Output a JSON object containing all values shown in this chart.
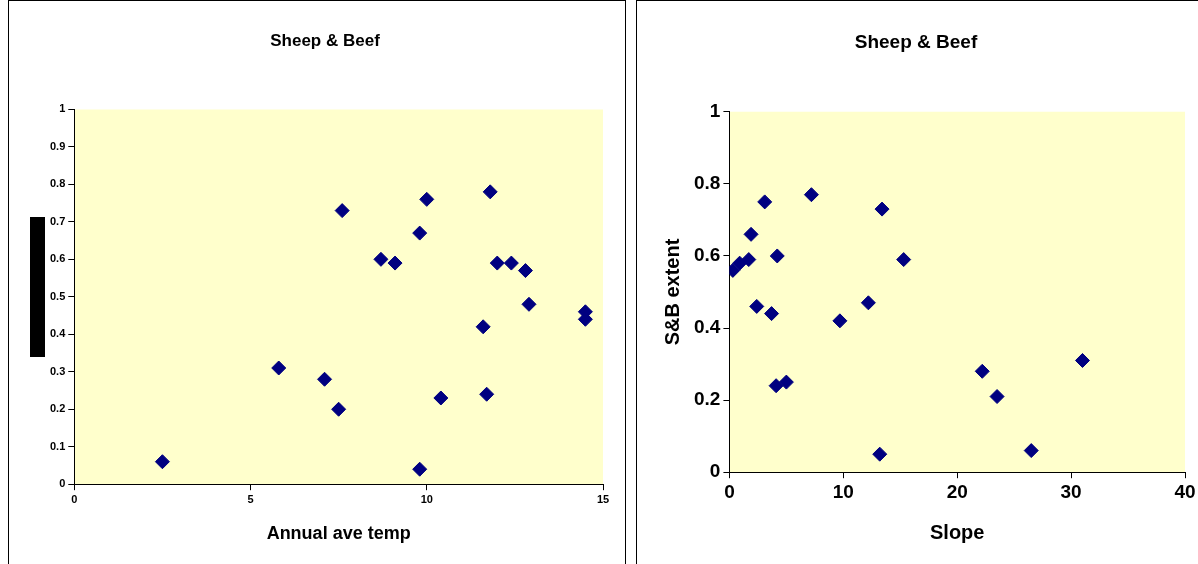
{
  "chart_data": [
    {
      "type": "scatter",
      "title": "Sheep & Beef",
      "xlabel": "Annual ave temp",
      "marker": "diamond",
      "xlim": [
        0,
        15
      ],
      "xticks": [
        0,
        5,
        10,
        15
      ],
      "ylim": [
        0,
        1
      ],
      "yticks": [
        0,
        0.1,
        0.2,
        0.3,
        0.4,
        0.5,
        0.6,
        0.7,
        0.8,
        0.9,
        1
      ],
      "series": [
        {
          "color": "#000080",
          "x": [
            2.5,
            5.8,
            7.1,
            7.5,
            7.6,
            8.7,
            9.1,
            9.8,
            10,
            9.8,
            10.4,
            11.6,
            11.7,
            11.8,
            12,
            12.4,
            12.8,
            12.9,
            14.5,
            14.5
          ],
          "values": [
            0.06,
            0.31,
            0.28,
            0.2,
            0.73,
            0.6,
            0.59,
            0.67,
            0.76,
            0.04,
            0.23,
            0.42,
            0.24,
            0.78,
            0.59,
            0.59,
            0.57,
            0.48,
            0.46,
            0.44
          ]
        }
      ]
    },
    {
      "type": "scatter",
      "title": "Sheep & Beef",
      "xlabel": "Slope",
      "ylabel": "S&B extent",
      "marker": "diamond",
      "xlim": [
        0,
        40
      ],
      "xticks": [
        0,
        10,
        20,
        30,
        40
      ],
      "ylim": [
        0,
        1
      ],
      "yticks": [
        0,
        0.2,
        0.4,
        0.6,
        0.8,
        1
      ],
      "series": [
        {
          "color": "#000080",
          "x": [
            0.3,
            0.9,
            1.7,
            1.9,
            2.4,
            3.1,
            3.7,
            4.1,
            4.2,
            5.0,
            7.2,
            9.7,
            12.2,
            13.2,
            13.4,
            15.3,
            22.2,
            23.5,
            26.5,
            31
          ],
          "values": [
            0.56,
            0.58,
            0.59,
            0.66,
            0.46,
            0.75,
            0.44,
            0.24,
            0.6,
            0.25,
            0.77,
            0.42,
            0.47,
            0.05,
            0.73,
            0.59,
            0.28,
            0.21,
            0.06,
            0.31
          ]
        }
      ]
    }
  ]
}
